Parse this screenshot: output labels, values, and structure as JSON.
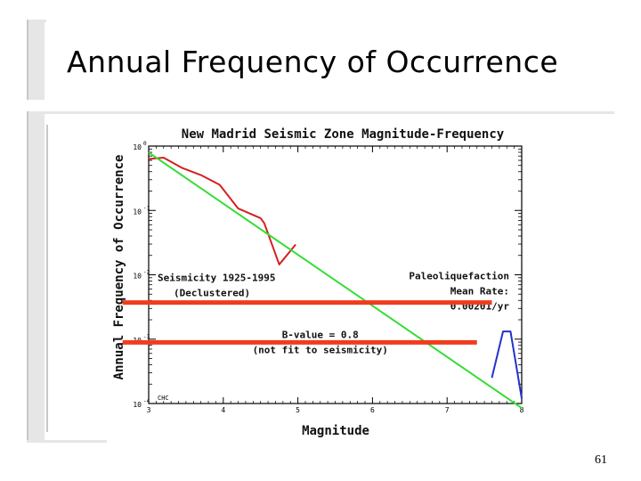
{
  "slide": {
    "title": "Annual Frequency of Occurrence",
    "page_number": "61"
  },
  "chart_data": {
    "type": "line",
    "title": "New Madrid Seismic Zone Magnitude-Frequency",
    "xlabel": "Magnitude",
    "ylabel": "Annual Frequency of Occurrence",
    "xlim": [
      3,
      8
    ],
    "ylim_log10": [
      -4,
      0
    ],
    "y_scale": "log",
    "x_ticks": [
      3,
      4,
      5,
      6,
      7,
      8
    ],
    "x_tick_labels": [
      "3",
      "4",
      "5",
      "6",
      "7",
      "8"
    ],
    "y_ticks_log10": [
      0,
      -1,
      -2,
      -3,
      -4
    ],
    "y_tick_labels": [
      "10",
      "10",
      "10",
      "10",
      "10"
    ],
    "y_tick_exponents": [
      "0",
      "-1",
      "-2",
      "-3",
      "-4"
    ],
    "corner_label": "CHC",
    "colors": {
      "seismicity": "#d42020",
      "b_value_fit": "#33dd33",
      "paleo": "#2233cc",
      "highlight": "#f03c1e"
    },
    "series": [
      {
        "name": "Seismicity 1925-1995 (Declustered)",
        "color": "seismicity",
        "x": [
          3.0,
          3.2,
          3.45,
          3.7,
          3.95,
          4.2,
          4.5,
          4.55,
          4.75,
          4.97
        ],
        "y_log10": [
          -0.2,
          -0.18,
          -0.34,
          -0.45,
          -0.6,
          -0.97,
          -1.12,
          -1.2,
          -1.84,
          -1.53
        ]
      },
      {
        "name": "B-value = 0.8",
        "color": "b_value_fit",
        "x": [
          3.0,
          8.0
        ],
        "y_log10": [
          -0.1,
          -4.07
        ]
      },
      {
        "name": "Paleoliquefaction Mean Rate: 0.00201/yr",
        "color": "paleo",
        "x": [
          7.6,
          7.75,
          7.85,
          8.0
        ],
        "y_log10": [
          -3.6,
          -2.88,
          -2.88,
          -3.92
        ]
      }
    ],
    "annotations": [
      {
        "lines": [
          "Seismicity 1925-1995",
          "(Declustered)"
        ],
        "anchor": "left-middle"
      },
      {
        "lines": [
          "B-value = 0.8",
          "(not fit to seismicity)"
        ],
        "anchor": "center-lower"
      },
      {
        "lines": [
          "Paleoliquefaction",
          "Mean Rate:",
          "0.00201/yr"
        ],
        "anchor": "right-middle"
      }
    ],
    "highlight_lines": [
      {
        "x": [
          2.65,
          7.6
        ],
        "y_log10": [
          -2.43
        ]
      },
      {
        "x": [
          2.65,
          7.4
        ],
        "y_log10": [
          -3.05
        ]
      }
    ],
    "grid": false,
    "legend": "none"
  }
}
